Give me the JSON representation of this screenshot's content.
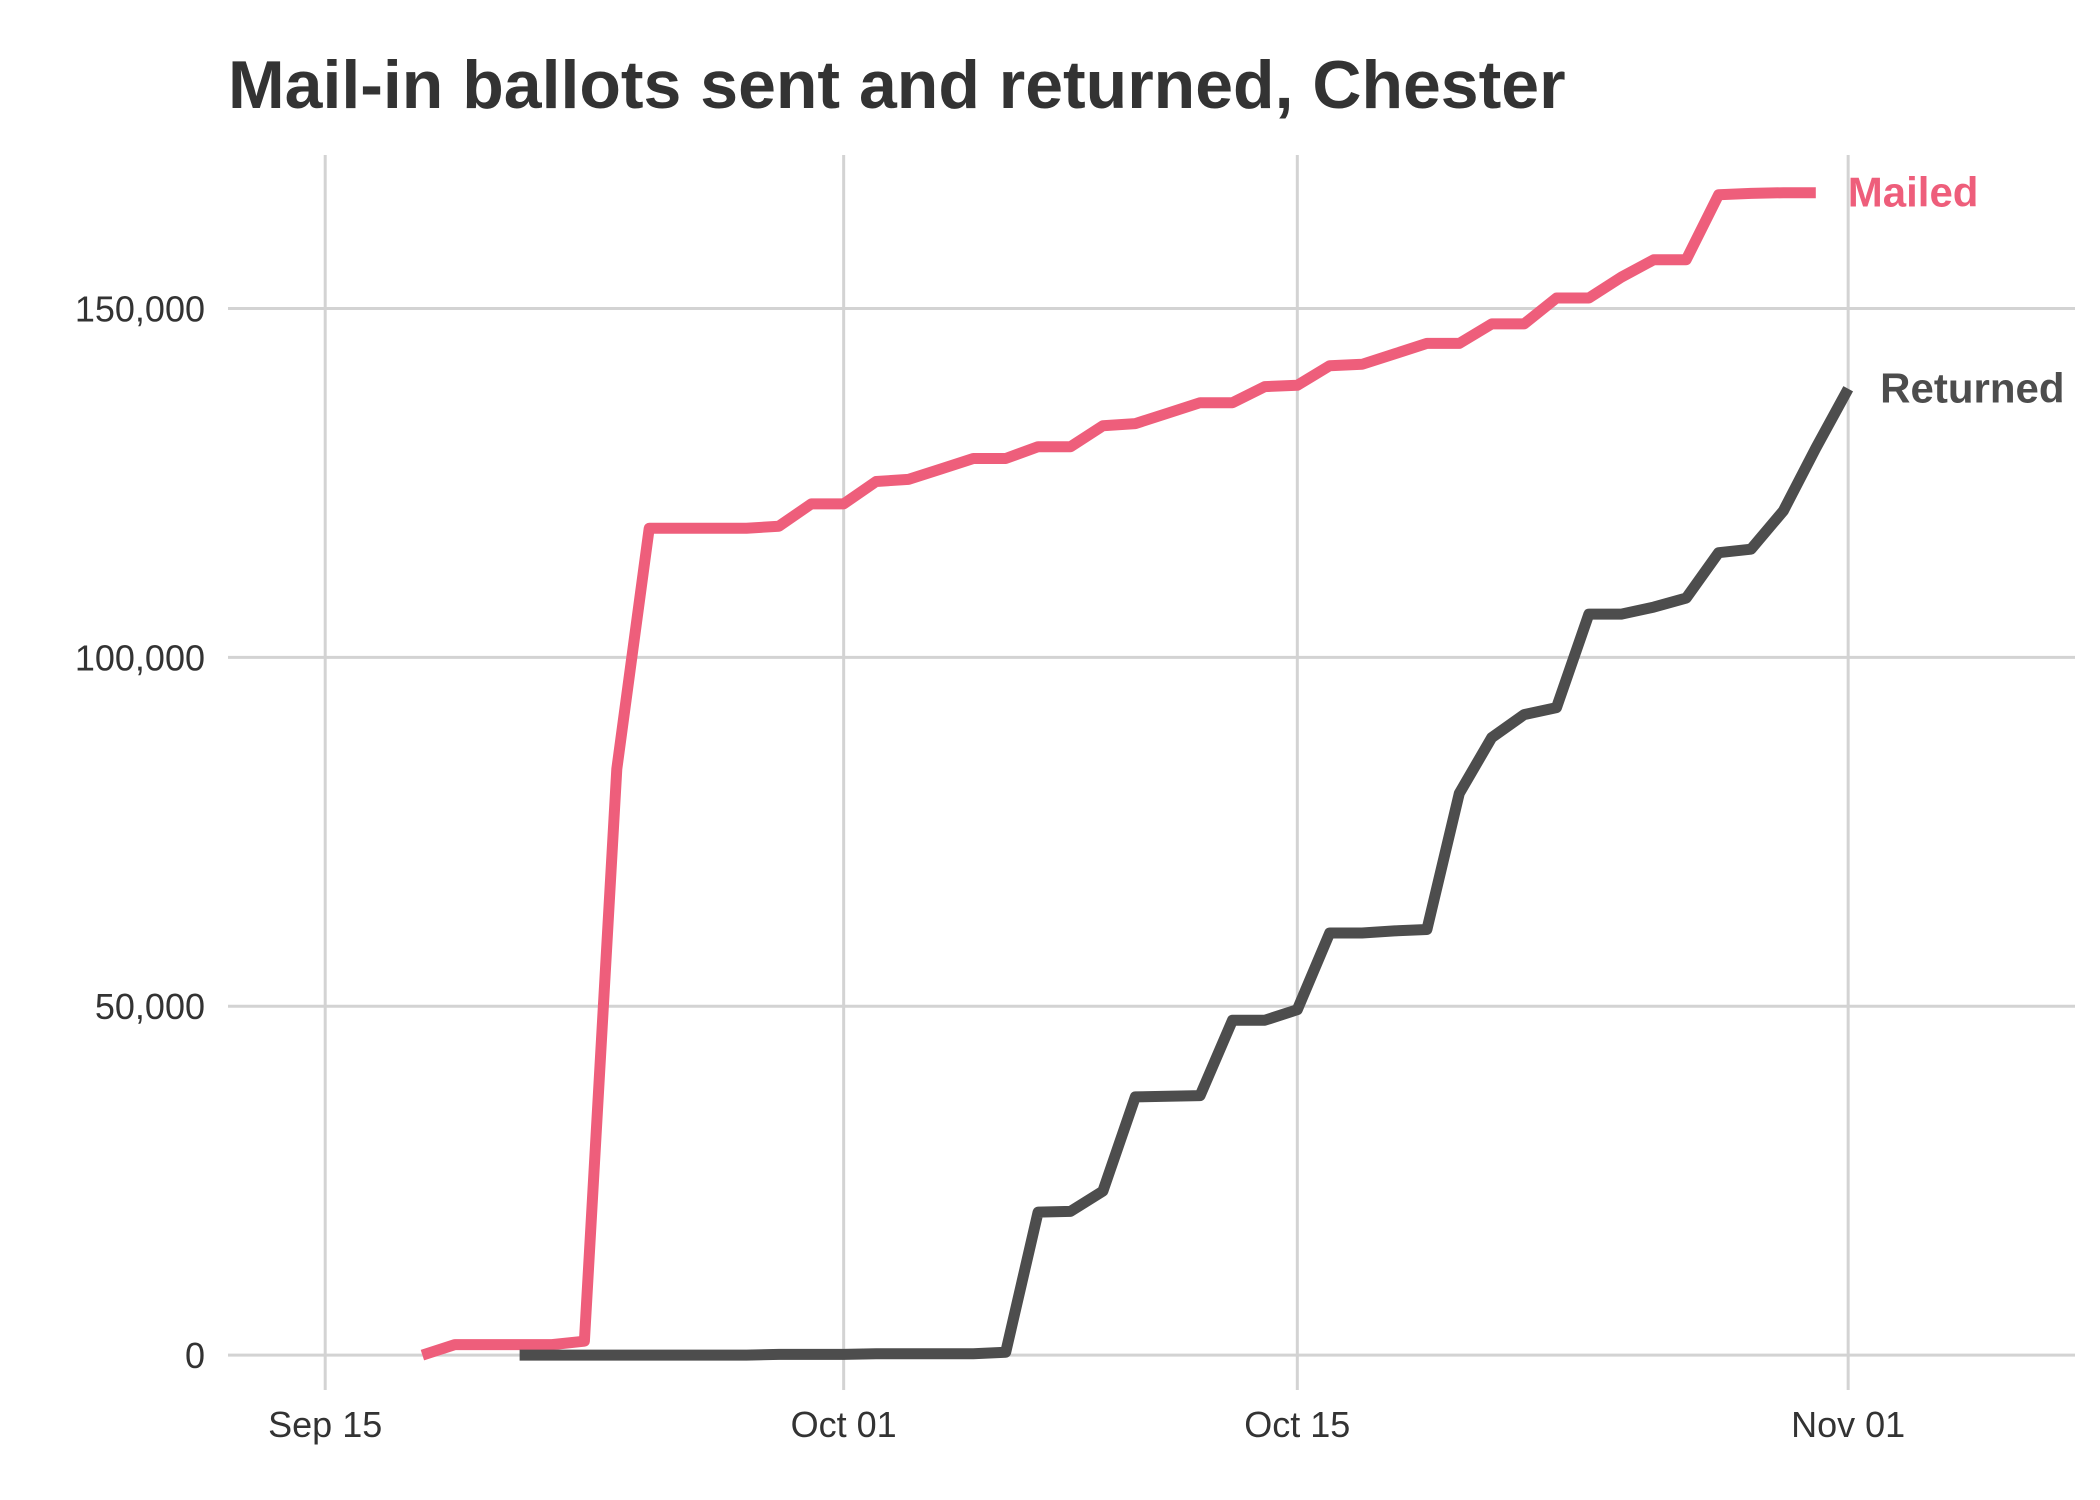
{
  "chart_data": {
    "type": "line",
    "title": "Mail-in ballots sent and returned, Chester",
    "xlabel": "",
    "ylabel": "",
    "x_axis": {
      "type": "date",
      "range": [
        "2020-09-12",
        "2020-11-08"
      ],
      "ticks": [
        {
          "date": "2020-09-15",
          "label": "Sep 15"
        },
        {
          "date": "2020-10-01",
          "label": "Oct 01"
        },
        {
          "date": "2020-10-15",
          "label": "Oct 15"
        },
        {
          "date": "2020-11-01",
          "label": "Nov 01"
        }
      ]
    },
    "y_axis": {
      "range": [
        -5000,
        172000
      ],
      "ticks": [
        {
          "value": 0,
          "label": "0"
        },
        {
          "value": 50000,
          "label": "50,000"
        },
        {
          "value": 100000,
          "label": "100,000"
        },
        {
          "value": 150000,
          "label": "150,000"
        }
      ]
    },
    "grid": true,
    "legend": "direct labels at line ends",
    "series": [
      {
        "name": "Mailed",
        "color": "#ee5e7b",
        "points": [
          [
            "2020-09-18",
            0
          ],
          [
            "2020-09-19",
            1500
          ],
          [
            "2020-09-20",
            1500
          ],
          [
            "2020-09-21",
            1500
          ],
          [
            "2020-09-22",
            1500
          ],
          [
            "2020-09-23",
            2000
          ],
          [
            "2020-09-24",
            84000
          ],
          [
            "2020-09-25",
            118500
          ],
          [
            "2020-09-26",
            118500
          ],
          [
            "2020-09-27",
            118500
          ],
          [
            "2020-09-28",
            118500
          ],
          [
            "2020-09-29",
            118800
          ],
          [
            "2020-09-30",
            122000
          ],
          [
            "2020-10-01",
            122000
          ],
          [
            "2020-10-02",
            125200
          ],
          [
            "2020-10-03",
            125500
          ],
          [
            "2020-10-04",
            127000
          ],
          [
            "2020-10-05",
            128500
          ],
          [
            "2020-10-06",
            128500
          ],
          [
            "2020-10-07",
            130200
          ],
          [
            "2020-10-08",
            130200
          ],
          [
            "2020-10-09",
            133200
          ],
          [
            "2020-10-10",
            133500
          ],
          [
            "2020-10-11",
            135000
          ],
          [
            "2020-10-12",
            136500
          ],
          [
            "2020-10-13",
            136500
          ],
          [
            "2020-10-14",
            138800
          ],
          [
            "2020-10-15",
            139000
          ],
          [
            "2020-10-16",
            141800
          ],
          [
            "2020-10-17",
            142000
          ],
          [
            "2020-10-18",
            143500
          ],
          [
            "2020-10-19",
            145000
          ],
          [
            "2020-10-20",
            145000
          ],
          [
            "2020-10-21",
            147800
          ],
          [
            "2020-10-22",
            147800
          ],
          [
            "2020-10-23",
            151500
          ],
          [
            "2020-10-24",
            151500
          ],
          [
            "2020-10-25",
            154500
          ],
          [
            "2020-10-26",
            157000
          ],
          [
            "2020-10-27",
            157000
          ],
          [
            "2020-10-28",
            166300
          ],
          [
            "2020-10-29",
            166500
          ],
          [
            "2020-10-30",
            166600
          ],
          [
            "2020-10-31",
            166600
          ]
        ]
      },
      {
        "name": "Returned",
        "color": "#4d4d4d",
        "points": [
          [
            "2020-09-21",
            0
          ],
          [
            "2020-09-22",
            0
          ],
          [
            "2020-09-23",
            0
          ],
          [
            "2020-09-24",
            0
          ],
          [
            "2020-09-25",
            0
          ],
          [
            "2020-09-26",
            0
          ],
          [
            "2020-09-27",
            0
          ],
          [
            "2020-09-28",
            0
          ],
          [
            "2020-09-29",
            100
          ],
          [
            "2020-09-30",
            100
          ],
          [
            "2020-10-01",
            100
          ],
          [
            "2020-10-02",
            200
          ],
          [
            "2020-10-03",
            200
          ],
          [
            "2020-10-04",
            200
          ],
          [
            "2020-10-05",
            200
          ],
          [
            "2020-10-06",
            400
          ],
          [
            "2020-10-07",
            20500
          ],
          [
            "2020-10-08",
            20600
          ],
          [
            "2020-10-09",
            23500
          ],
          [
            "2020-10-10",
            37000
          ],
          [
            "2020-10-11",
            37100
          ],
          [
            "2020-10-12",
            37200
          ],
          [
            "2020-10-13",
            48000
          ],
          [
            "2020-10-14",
            48000
          ],
          [
            "2020-10-15",
            49500
          ],
          [
            "2020-10-16",
            60500
          ],
          [
            "2020-10-17",
            60500
          ],
          [
            "2020-10-18",
            60800
          ],
          [
            "2020-10-19",
            61000
          ],
          [
            "2020-10-20",
            80500
          ],
          [
            "2020-10-21",
            88500
          ],
          [
            "2020-10-22",
            91800
          ],
          [
            "2020-10-23",
            92800
          ],
          [
            "2020-10-24",
            106200
          ],
          [
            "2020-10-25",
            106200
          ],
          [
            "2020-10-26",
            107200
          ],
          [
            "2020-10-27",
            108500
          ],
          [
            "2020-10-28",
            115000
          ],
          [
            "2020-10-29",
            115500
          ],
          [
            "2020-10-30",
            121000
          ],
          [
            "2020-10-31",
            130000
          ],
          [
            "2020-11-01",
            138500
          ]
        ]
      }
    ]
  }
}
